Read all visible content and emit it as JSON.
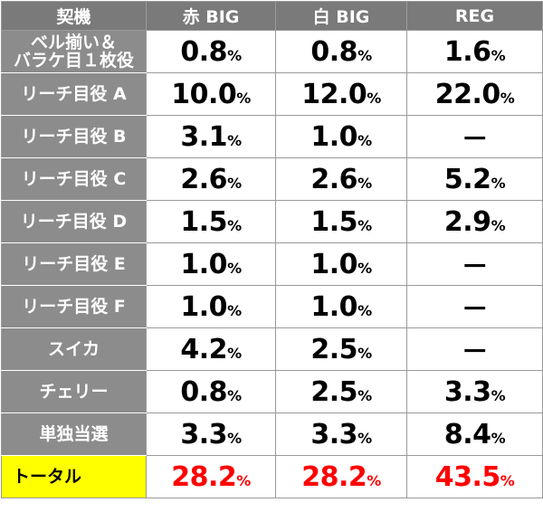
{
  "table": {
    "header": [
      "契機",
      "赤 BIG",
      "白 BIG",
      "REG"
    ],
    "rows": [
      [
        "ベル揃い＆\nバラケ目１枚役",
        "0.8%",
        "0.8%",
        "1.6%"
      ],
      [
        "リーチ目役 A",
        "10.0%",
        "12.0%",
        "22.0%"
      ],
      [
        "リーチ目役 B",
        "3.1%",
        "1.0%",
        "－"
      ],
      [
        "リーチ目役 C",
        "2.6%",
        "2.6%",
        "5.2%"
      ],
      [
        "リーチ目役 D",
        "1.5%",
        "1.5%",
        "2.9%"
      ],
      [
        "リーチ目役 E",
        "1.0%",
        "1.0%",
        "－"
      ],
      [
        "リーチ目役 F",
        "1.0%",
        "1.0%",
        "－"
      ],
      [
        "スイカ",
        "4.2%",
        "2.5%",
        "－"
      ],
      [
        "チェリー",
        "0.8%",
        "2.5%",
        "3.3%"
      ],
      [
        "単独当選",
        "3.3%",
        "3.3%",
        "8.4%"
      ]
    ],
    "total": [
      "トータル",
      "28.2%",
      "28.2%",
      "43.5%"
    ]
  }
}
